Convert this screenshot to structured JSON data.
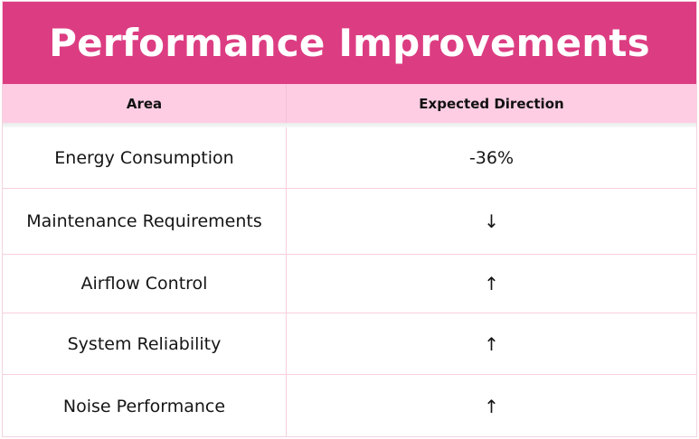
{
  "title": "Performance Improvements",
  "table": {
    "headers": {
      "area": "Area",
      "direction": "Expected Direction"
    },
    "rows": [
      {
        "area": "Energy Consumption",
        "direction": "-36%"
      },
      {
        "area": "Maintenance Requirements",
        "direction": "↓"
      },
      {
        "area": "Airflow Control",
        "direction": "↑"
      },
      {
        "area": "System Reliability",
        "direction": "↑"
      },
      {
        "area": "Noise Performance",
        "direction": "↑"
      }
    ]
  },
  "colors": {
    "title_bg": "#dc3d82",
    "header_bg": "#fecde3",
    "grid_line": "#f7cfdf"
  }
}
